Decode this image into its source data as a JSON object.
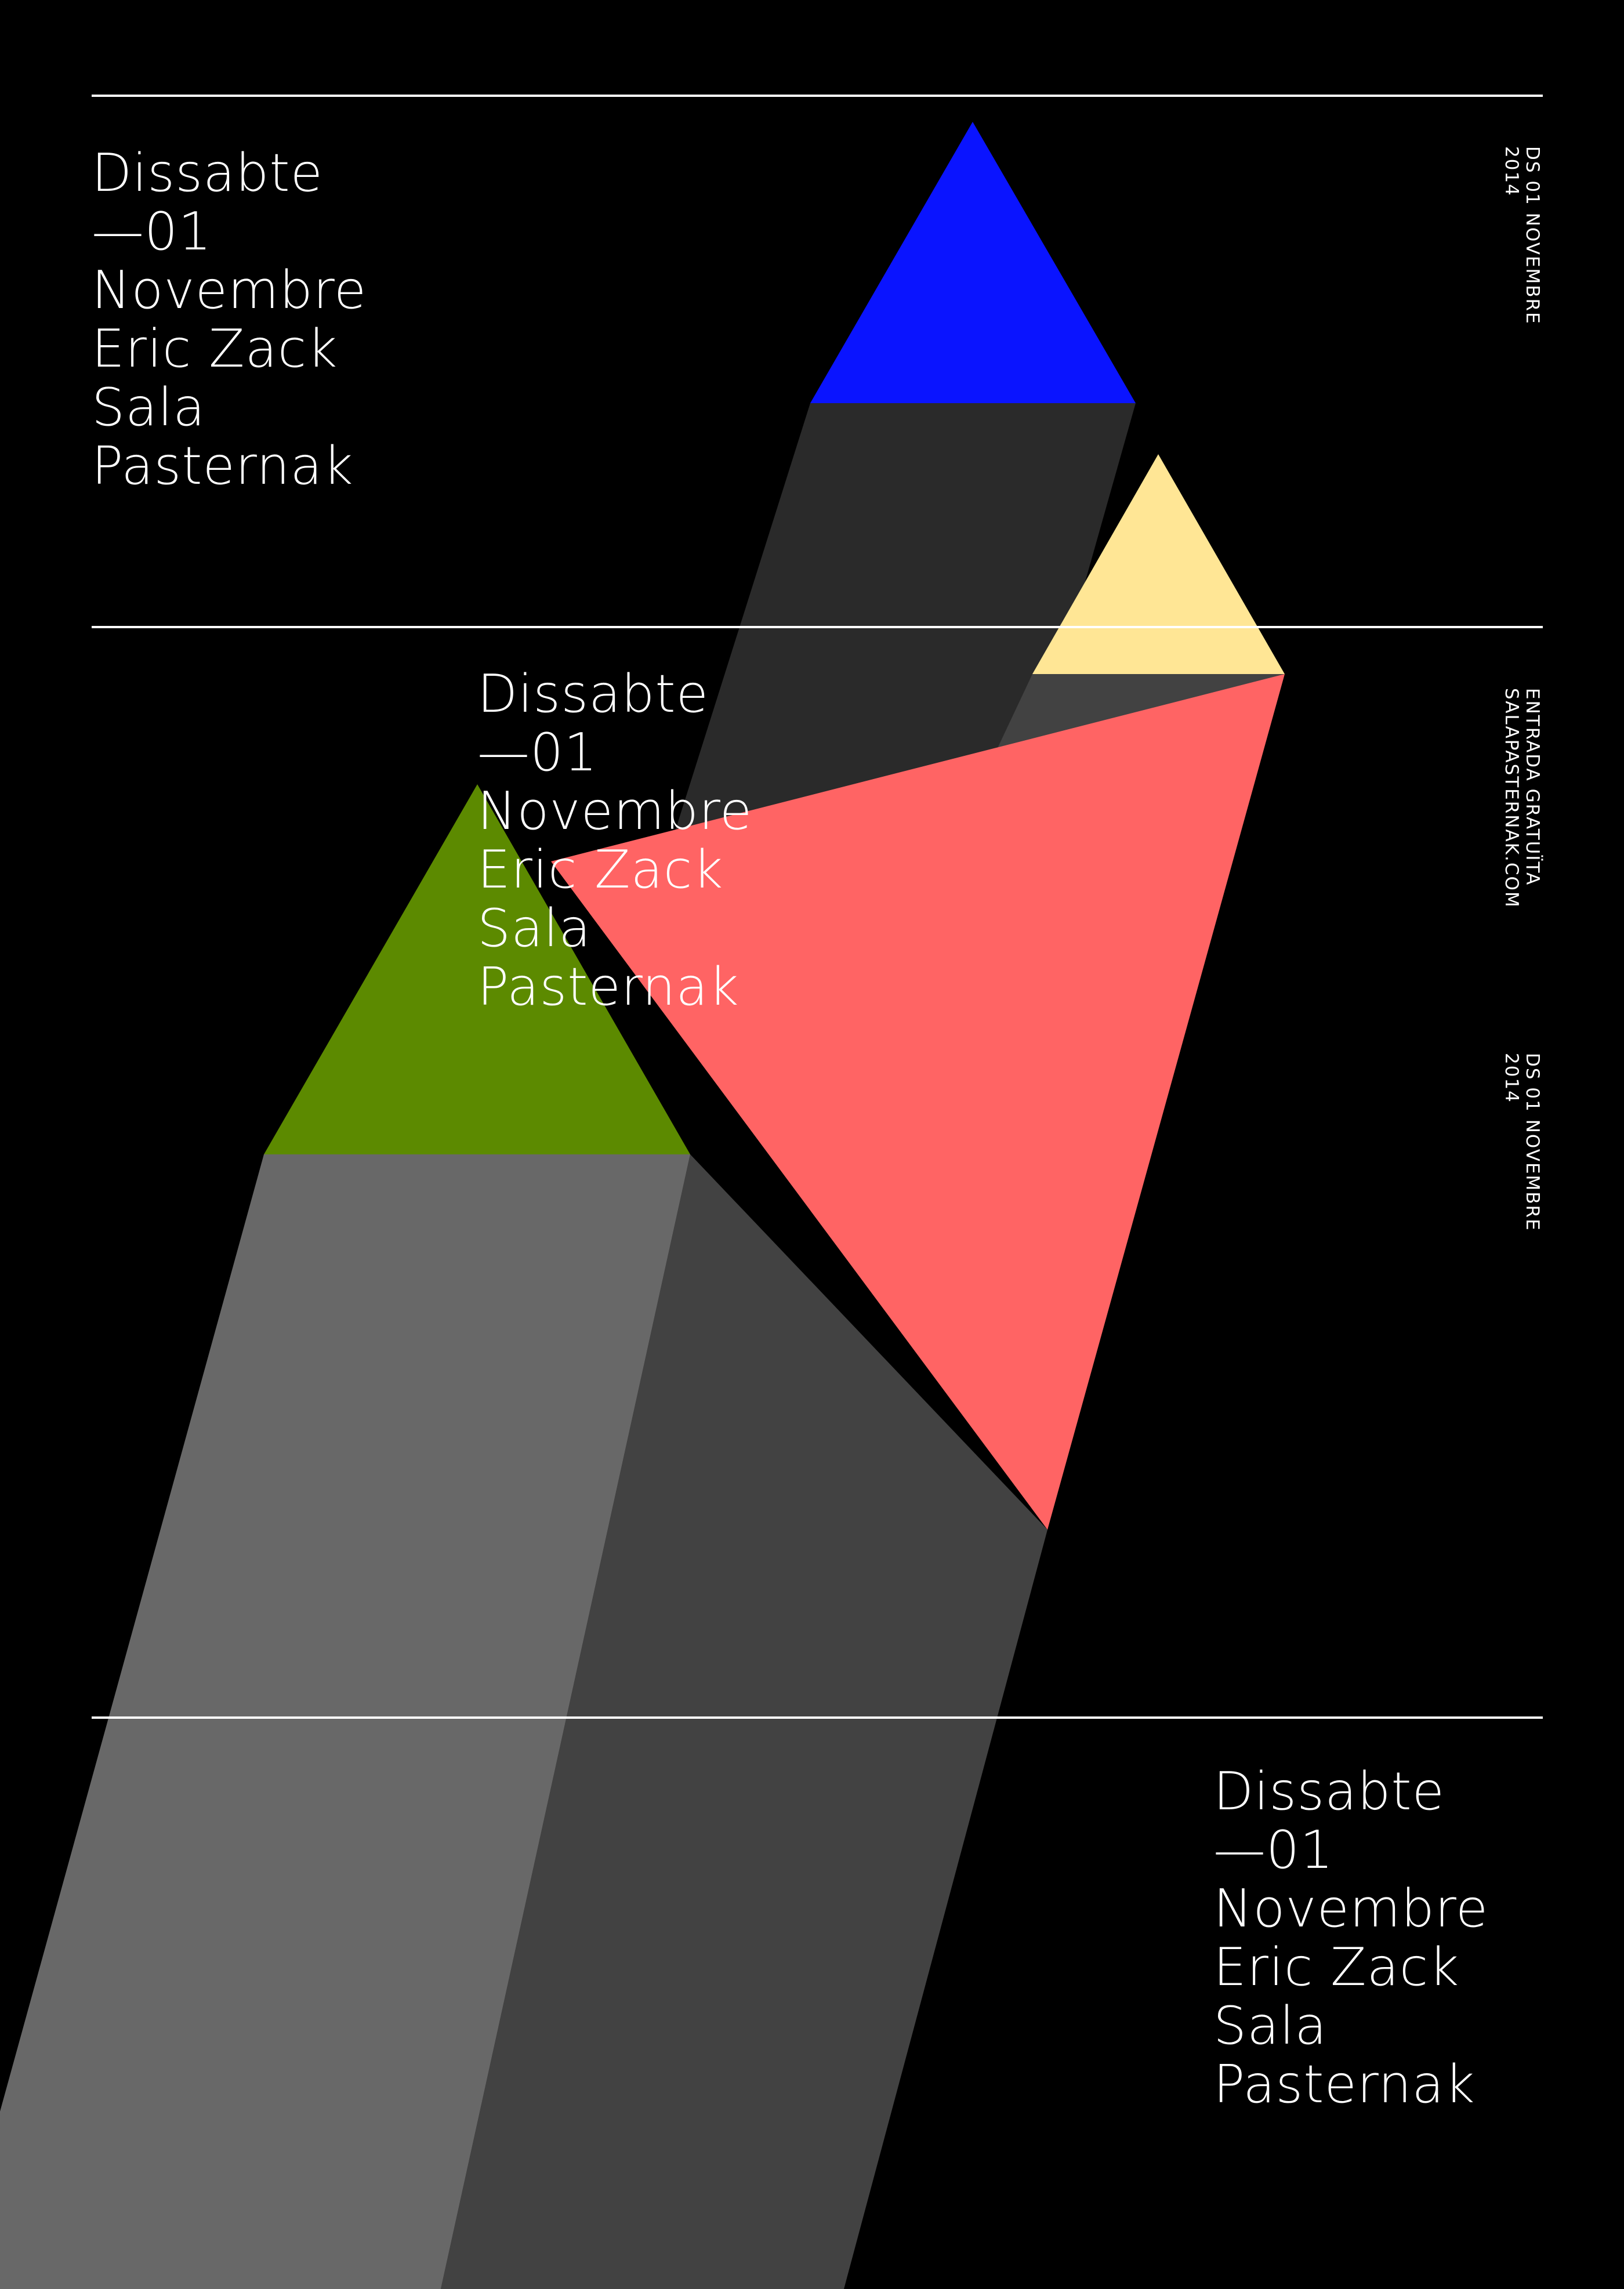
{
  "poster": {
    "background": "#000000",
    "event_blocks": [
      {
        "day": "Dissabte",
        "date": "—01",
        "month": "Novembre",
        "artist": "Eric Zack",
        "venue_line1": "Sala",
        "venue_line2": "Pasternak"
      },
      {
        "day": "Dissabte",
        "date": "—01",
        "month": "Novembre",
        "artist": "Eric Zack",
        "venue_line1": "Sala",
        "venue_line2": "Pasternak"
      },
      {
        "day": "Dissabte",
        "date": "—01",
        "month": "Novembre",
        "artist": "Eric Zack",
        "venue_line1": "Sala",
        "venue_line2": "Pasternak"
      }
    ],
    "side_text": {
      "date_top_line1": "DS 01 NOVEMBRE",
      "date_top_line2": "2014",
      "entry_line1": "ENTRADA GRATUÏTA",
      "entry_line2": "SALAPASTERNAK.COM",
      "date_bottom_line1": "DS 01 NOVEMBRE",
      "date_bottom_line2": "2014"
    },
    "colors": {
      "blue_triangle": "#0a14ff",
      "yellow_triangle": "#ffe695",
      "red_triangle": "#ff6464",
      "green_triangle": "#5c8a00",
      "shadow_dark": "#2a2a2a",
      "shadow_mid": "#424242",
      "shadow_light": "#686868",
      "text": "#ffffff"
    }
  }
}
